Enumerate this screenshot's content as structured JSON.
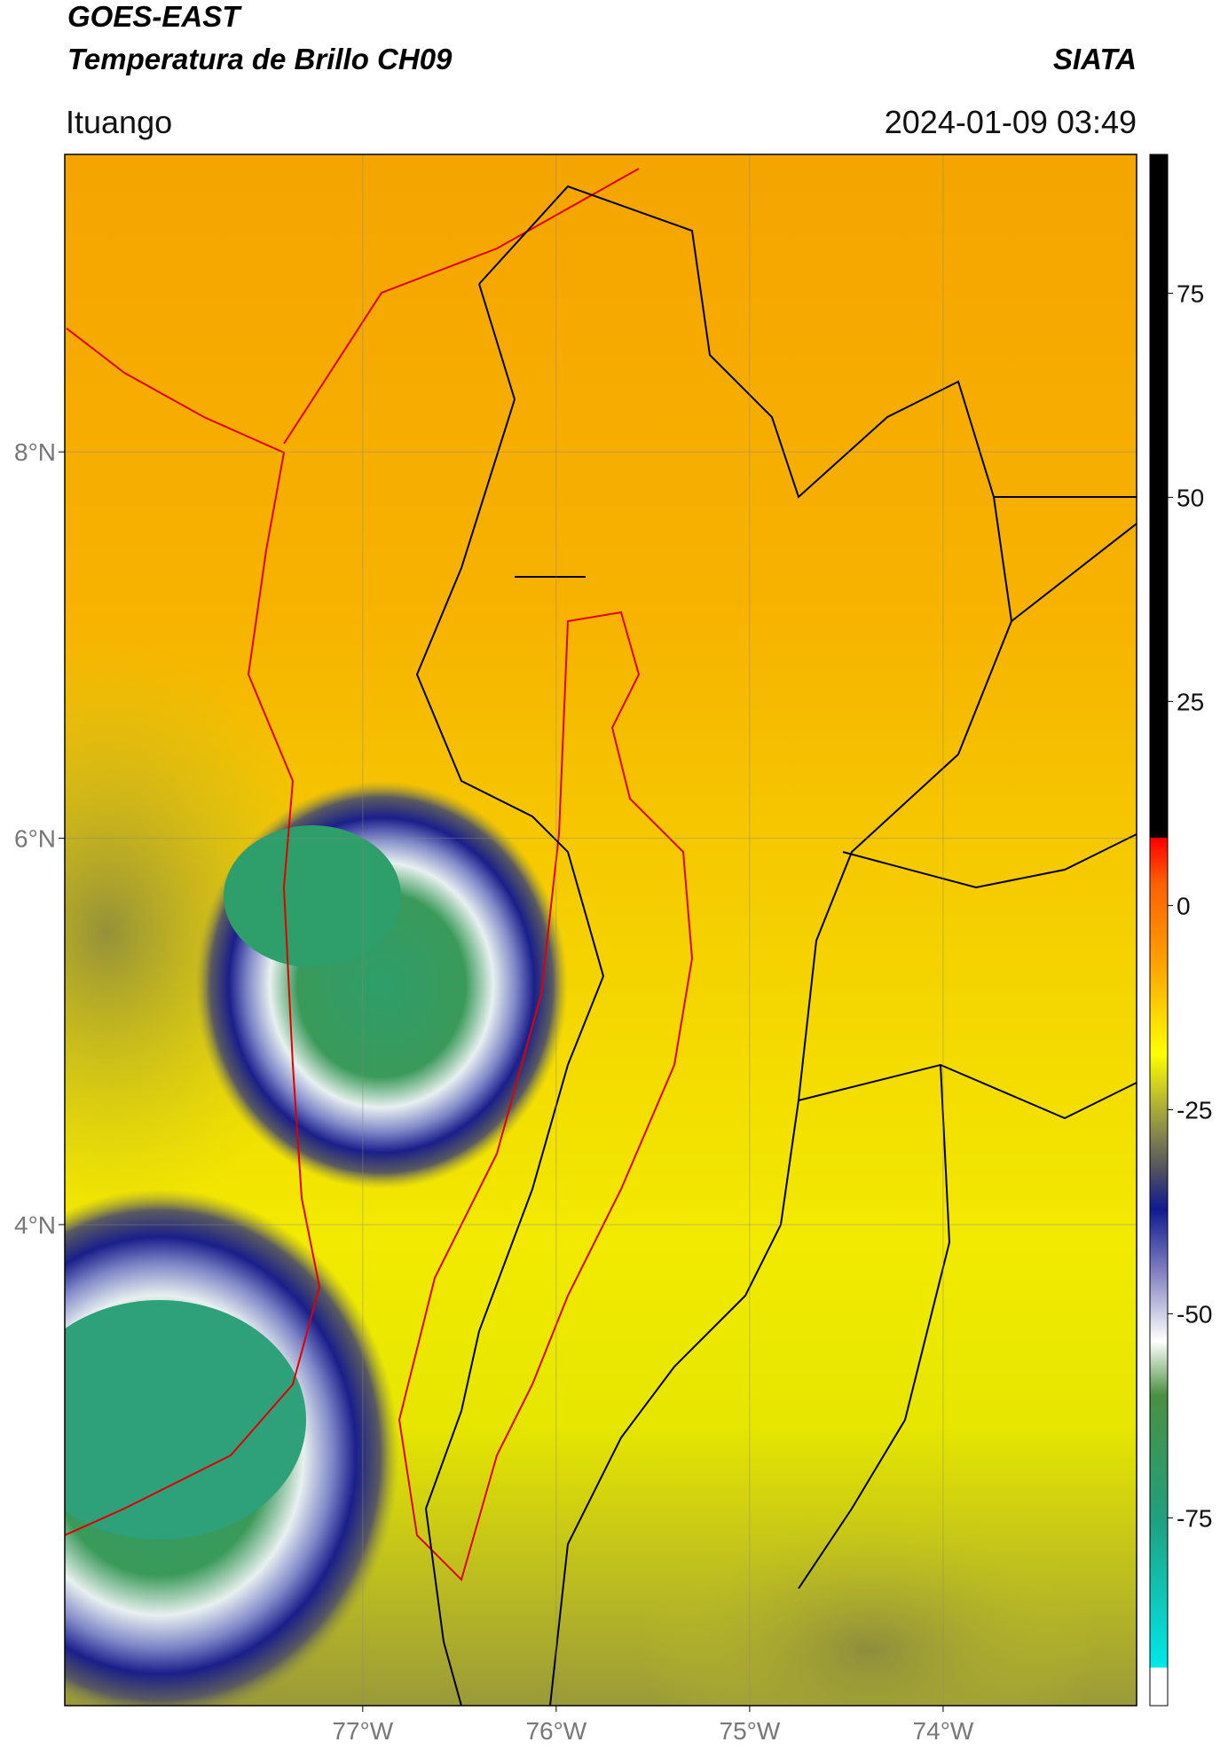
{
  "header": {
    "title": "GOES-EAST",
    "subtitle": "Temperatura de Brillo CH09",
    "source": "SIATA",
    "location": "Ituango",
    "datetime": "2024-01-09 03:49"
  },
  "chart_data": {
    "type": "map",
    "xlim": [
      -78.54,
      -73.0
    ],
    "ylim": [
      1.51,
      9.54
    ],
    "xticks": [
      {
        "value": -77,
        "label": "77°W"
      },
      {
        "value": -76,
        "label": "76°W"
      },
      {
        "value": -75,
        "label": "75°W"
      },
      {
        "value": -74,
        "label": "74°W"
      }
    ],
    "yticks": [
      {
        "value": 4,
        "label": "4°N"
      },
      {
        "value": 6,
        "label": "6°N"
      },
      {
        "value": 8,
        "label": "8°N"
      }
    ],
    "grid": true,
    "colorbar": {
      "lim": [
        -98,
        92
      ],
      "ticks": [
        -75,
        -50,
        -25,
        0,
        25,
        50,
        75
      ]
    }
  }
}
